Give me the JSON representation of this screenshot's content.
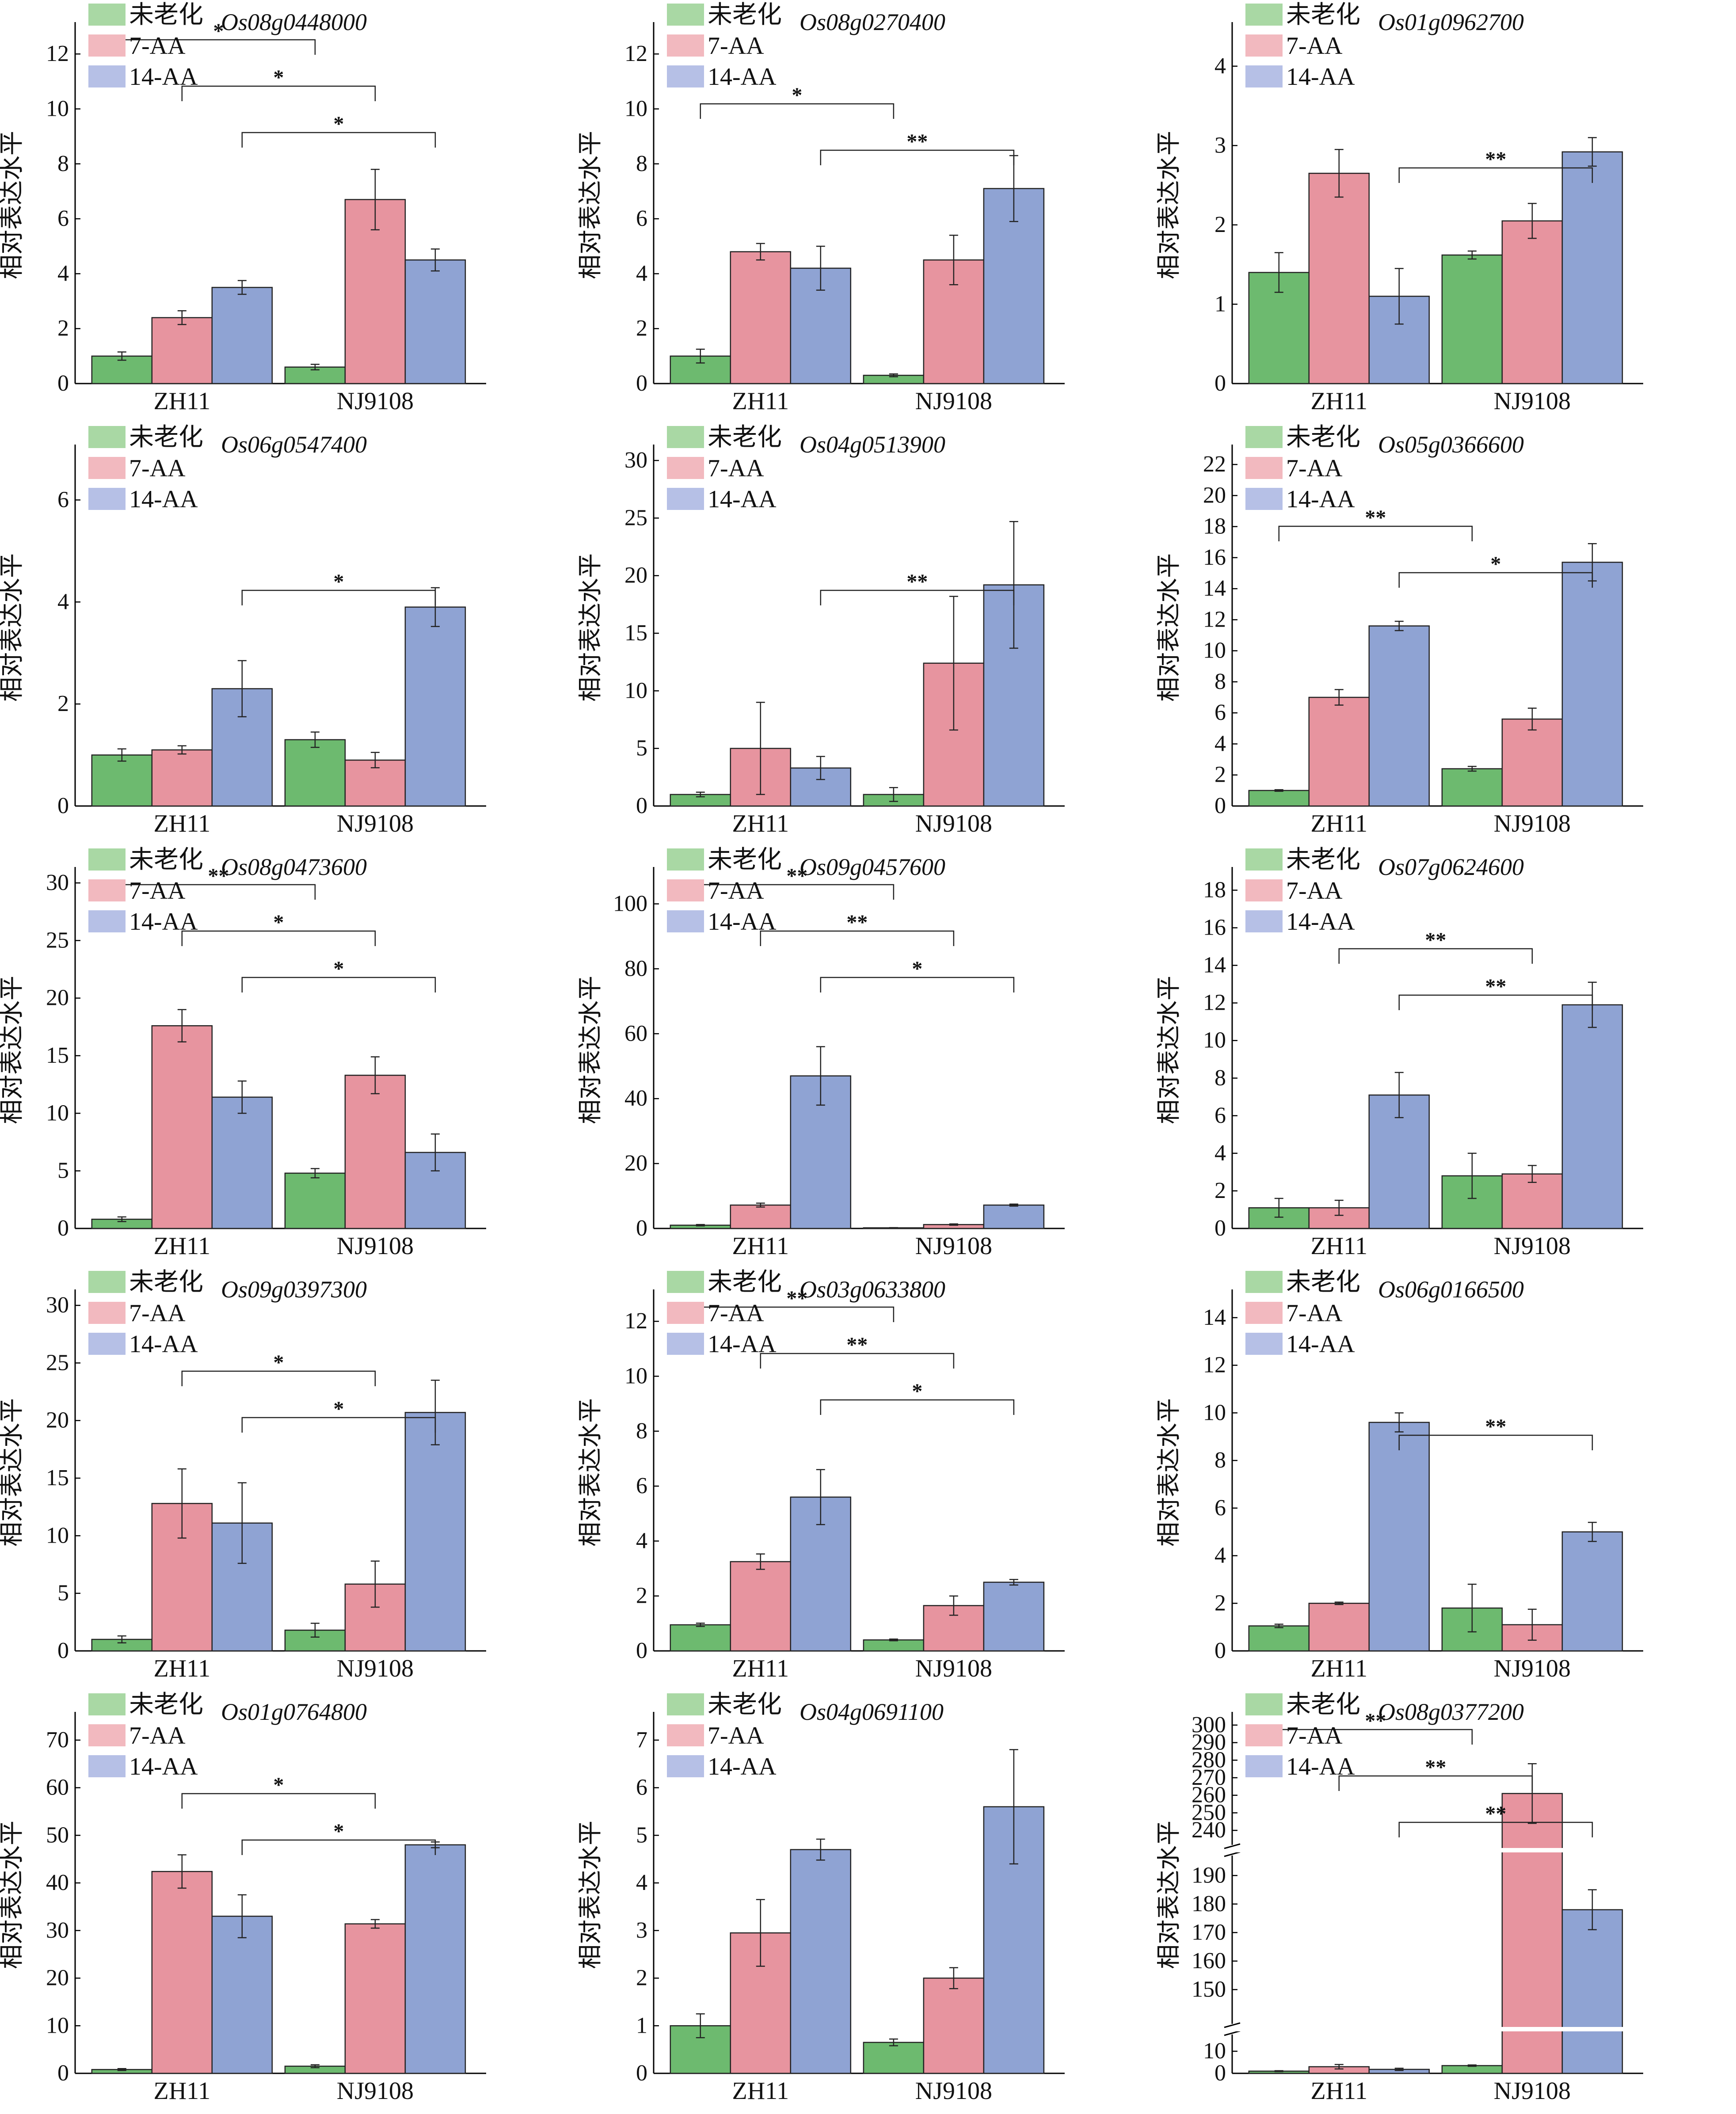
{
  "legend_labels": [
    "未老化",
    "7-AA",
    "14-AA"
  ],
  "colors": {
    "unaged": "#6dba6f",
    "aa7": "#e7949f",
    "aa14": "#8fa3d3",
    "legend_unaged": "#a9d8a4",
    "legend_aa7": "#f2b9bf",
    "legend_aa14": "#b6c0e6"
  },
  "chart_data": [
    {
      "type": "bar",
      "title": "Os08g0448000",
      "ylabel": "相对表达水平",
      "categories": [
        "ZH11",
        "NJ9108"
      ],
      "ylim": [
        0,
        13
      ],
      "yticks": [
        0,
        2,
        4,
        6,
        8,
        10,
        12
      ],
      "series": [
        {
          "name": "未老化",
          "values": [
            1.0,
            0.6
          ],
          "errors": [
            0.15,
            0.1
          ]
        },
        {
          "name": "7-AA",
          "values": [
            2.4,
            6.7
          ],
          "errors": [
            0.25,
            1.1
          ]
        },
        {
          "name": "14-AA",
          "values": [
            3.5,
            4.5
          ],
          "errors": [
            0.25,
            0.4
          ]
        }
      ],
      "significance": [
        {
          "series": 0,
          "label": "*"
        },
        {
          "series": 1,
          "label": "*"
        },
        {
          "series": 2,
          "label": "*"
        }
      ]
    },
    {
      "type": "bar",
      "title": "Os08g0270400",
      "ylabel": "相对表达水平",
      "categories": [
        "ZH11",
        "NJ9108"
      ],
      "ylim": [
        0,
        13
      ],
      "yticks": [
        0,
        2,
        4,
        6,
        8,
        10,
        12
      ],
      "series": [
        {
          "name": "未老化",
          "values": [
            1.0,
            0.3
          ],
          "errors": [
            0.25,
            0.05
          ]
        },
        {
          "name": "7-AA",
          "values": [
            4.8,
            4.5
          ],
          "errors": [
            0.3,
            0.9
          ]
        },
        {
          "name": "14-AA",
          "values": [
            4.2,
            7.1
          ],
          "errors": [
            0.8,
            1.2
          ]
        }
      ],
      "significance": [
        {
          "series": 0,
          "label": "*"
        },
        {
          "series": 2,
          "label": "**"
        }
      ]
    },
    {
      "type": "bar",
      "title": "Os01g0962700",
      "ylabel": "相对表达水平",
      "categories": [
        "ZH11",
        "NJ9108"
      ],
      "ylim": [
        0,
        4.5
      ],
      "yticks": [
        0,
        1,
        2,
        3,
        4
      ],
      "series": [
        {
          "name": "未老化",
          "values": [
            1.4,
            1.62
          ],
          "errors": [
            0.25,
            0.05
          ]
        },
        {
          "name": "7-AA",
          "values": [
            2.65,
            2.05
          ],
          "errors": [
            0.3,
            0.22
          ]
        },
        {
          "name": "14-AA",
          "values": [
            1.1,
            2.92
          ],
          "errors": [
            0.35,
            0.18
          ]
        }
      ],
      "significance": [
        {
          "series": 2,
          "label": "**"
        }
      ]
    },
    {
      "type": "bar",
      "title": "Os06g0547400",
      "ylabel": "相对表达水平",
      "categories": [
        "ZH11",
        "NJ9108"
      ],
      "ylim": [
        0,
        7
      ],
      "yticks": [
        0,
        2,
        4,
        6
      ],
      "series": [
        {
          "name": "未老化",
          "values": [
            1.0,
            1.3
          ],
          "errors": [
            0.12,
            0.15
          ]
        },
        {
          "name": "7-AA",
          "values": [
            1.1,
            0.9
          ],
          "errors": [
            0.08,
            0.15
          ]
        },
        {
          "name": "14-AA",
          "values": [
            2.3,
            3.9
          ],
          "errors": [
            0.55,
            0.38
          ]
        }
      ],
      "significance": [
        {
          "series": 2,
          "label": "*"
        }
      ]
    },
    {
      "type": "bar",
      "title": "Os04g0513900",
      "ylabel": "相对表达水平",
      "categories": [
        "ZH11",
        "NJ9108"
      ],
      "ylim": [
        0,
        31
      ],
      "yticks": [
        0,
        5,
        10,
        15,
        20,
        25,
        30
      ],
      "series": [
        {
          "name": "未老化",
          "values": [
            1.0,
            1.0
          ],
          "errors": [
            0.2,
            0.6
          ]
        },
        {
          "name": "7-AA",
          "values": [
            5.0,
            12.4
          ],
          "errors": [
            4.0,
            5.8
          ]
        },
        {
          "name": "14-AA",
          "values": [
            3.3,
            19.2
          ],
          "errors": [
            1.0,
            5.5
          ]
        }
      ],
      "significance": [
        {
          "series": 2,
          "label": "**"
        }
      ]
    },
    {
      "type": "bar",
      "title": "Os05g0366600",
      "ylabel": "相对表达水平",
      "categories": [
        "ZH11",
        "NJ9108"
      ],
      "ylim": [
        0,
        23
      ],
      "yticks": [
        0,
        2,
        4,
        6,
        8,
        10,
        12,
        14,
        16,
        18,
        20,
        22
      ],
      "series": [
        {
          "name": "未老化",
          "values": [
            1.0,
            2.4
          ],
          "errors": [
            0.05,
            0.15
          ]
        },
        {
          "name": "7-AA",
          "values": [
            7.0,
            5.6
          ],
          "errors": [
            0.5,
            0.7
          ]
        },
        {
          "name": "14-AA",
          "values": [
            11.6,
            15.7
          ],
          "errors": [
            0.3,
            1.2
          ]
        }
      ],
      "significance": [
        {
          "series": 0,
          "label": "**"
        },
        {
          "series": 2,
          "label": "*"
        }
      ]
    },
    {
      "type": "bar",
      "title": "Os08g0473600",
      "ylabel": "相对表达水平",
      "categories": [
        "ZH11",
        "NJ9108"
      ],
      "ylim": [
        0,
        31
      ],
      "yticks": [
        0,
        5,
        10,
        15,
        20,
        25,
        30
      ],
      "series": [
        {
          "name": "未老化",
          "values": [
            0.8,
            4.8
          ],
          "errors": [
            0.2,
            0.4
          ]
        },
        {
          "name": "7-AA",
          "values": [
            17.6,
            13.3
          ],
          "errors": [
            1.4,
            1.6
          ]
        },
        {
          "name": "14-AA",
          "values": [
            11.4,
            6.6
          ],
          "errors": [
            1.4,
            1.6
          ]
        }
      ],
      "significance": [
        {
          "series": 0,
          "label": "**"
        },
        {
          "series": 1,
          "label": "*"
        },
        {
          "series": 2,
          "label": "*"
        }
      ]
    },
    {
      "type": "bar",
      "title": "Os09g0457600",
      "ylabel": "相对表达水平",
      "categories": [
        "ZH11",
        "NJ9108"
      ],
      "ylim": [
        0,
        110
      ],
      "yticks": [
        0,
        20,
        40,
        60,
        80,
        100
      ],
      "series": [
        {
          "name": "未老化",
          "values": [
            1.0,
            0.2
          ],
          "errors": [
            0.2,
            0.05
          ]
        },
        {
          "name": "7-AA",
          "values": [
            7.2,
            1.2
          ],
          "errors": [
            0.6,
            0.2
          ]
        },
        {
          "name": "14-AA",
          "values": [
            47.0,
            7.2
          ],
          "errors": [
            9.0,
            0.3
          ]
        }
      ],
      "significance": [
        {
          "series": 0,
          "label": "**"
        },
        {
          "series": 1,
          "label": "**"
        },
        {
          "series": 2,
          "label": "*"
        }
      ]
    },
    {
      "type": "bar",
      "title": "Os07g0624600",
      "ylabel": "相对表达水平",
      "categories": [
        "ZH11",
        "NJ9108"
      ],
      "ylim": [
        0,
        19
      ],
      "yticks": [
        0,
        2,
        4,
        6,
        8,
        10,
        12,
        14,
        16,
        18
      ],
      "series": [
        {
          "name": "未老化",
          "values": [
            1.1,
            2.8
          ],
          "errors": [
            0.5,
            1.2
          ]
        },
        {
          "name": "7-AA",
          "values": [
            1.1,
            2.9
          ],
          "errors": [
            0.4,
            0.45
          ]
        },
        {
          "name": "14-AA",
          "values": [
            7.1,
            11.9
          ],
          "errors": [
            1.2,
            1.2
          ]
        }
      ],
      "significance": [
        {
          "series": 1,
          "label": "**"
        },
        {
          "series": 2,
          "label": "**"
        }
      ]
    },
    {
      "type": "bar",
      "title": "Os09g0397300",
      "ylabel": "相对表达水平",
      "categories": [
        "ZH11",
        "NJ9108"
      ],
      "ylim": [
        0,
        31
      ],
      "yticks": [
        0,
        5,
        10,
        15,
        20,
        25,
        30
      ],
      "series": [
        {
          "name": "未老化",
          "values": [
            1.0,
            1.8
          ],
          "errors": [
            0.3,
            0.6
          ]
        },
        {
          "name": "7-AA",
          "values": [
            12.8,
            5.8
          ],
          "errors": [
            3.0,
            2.0
          ]
        },
        {
          "name": "14-AA",
          "values": [
            11.1,
            20.7
          ],
          "errors": [
            3.5,
            2.8
          ]
        }
      ],
      "significance": [
        {
          "series": 1,
          "label": "*"
        },
        {
          "series": 2,
          "label": "*"
        }
      ]
    },
    {
      "type": "bar",
      "title": "Os03g0633800",
      "ylabel": "相对表达水平",
      "categories": [
        "ZH11",
        "NJ9108"
      ],
      "ylim": [
        0,
        13
      ],
      "yticks": [
        0,
        2,
        4,
        6,
        8,
        10,
        12
      ],
      "series": [
        {
          "name": "未老化",
          "values": [
            0.95,
            0.4
          ],
          "errors": [
            0.06,
            0.03
          ]
        },
        {
          "name": "7-AA",
          "values": [
            3.25,
            1.65
          ],
          "errors": [
            0.28,
            0.35
          ]
        },
        {
          "name": "14-AA",
          "values": [
            5.6,
            2.5
          ],
          "errors": [
            1.0,
            0.1
          ]
        }
      ],
      "significance": [
        {
          "series": 0,
          "label": "**"
        },
        {
          "series": 1,
          "label": "**"
        },
        {
          "series": 2,
          "label": "*"
        }
      ]
    },
    {
      "type": "bar",
      "title": "Os06g0166500",
      "ylabel": "相对表达水平",
      "categories": [
        "ZH11",
        "NJ9108"
      ],
      "ylim": [
        0,
        15
      ],
      "yticks": [
        0,
        2,
        4,
        6,
        8,
        10,
        12,
        14
      ],
      "series": [
        {
          "name": "未老化",
          "values": [
            1.05,
            1.8
          ],
          "errors": [
            0.07,
            1.0
          ]
        },
        {
          "name": "7-AA",
          "values": [
            2.0,
            1.1
          ],
          "errors": [
            0.05,
            0.65
          ]
        },
        {
          "name": "14-AA",
          "values": [
            9.6,
            5.0
          ],
          "errors": [
            0.4,
            0.4
          ]
        }
      ],
      "significance": [
        {
          "series": 2,
          "label": "**"
        }
      ]
    },
    {
      "type": "bar",
      "title": "Os01g0764800",
      "ylabel": "相对表达水平",
      "categories": [
        "ZH11",
        "NJ9108"
      ],
      "ylim": [
        0,
        75
      ],
      "yticks": [
        0,
        10,
        20,
        30,
        40,
        50,
        60,
        70
      ],
      "series": [
        {
          "name": "未老化",
          "values": [
            0.8,
            1.5
          ],
          "errors": [
            0.2,
            0.3
          ]
        },
        {
          "name": "7-AA",
          "values": [
            42.4,
            31.4
          ],
          "errors": [
            3.5,
            0.9
          ]
        },
        {
          "name": "14-AA",
          "values": [
            33.0,
            48.0
          ],
          "errors": [
            4.5,
            0.6
          ]
        }
      ],
      "significance": [
        {
          "series": 1,
          "label": "*"
        },
        {
          "series": 2,
          "label": "*"
        }
      ]
    },
    {
      "type": "bar",
      "title": "Os04g0691100",
      "ylabel": "相对表达水平",
      "categories": [
        "ZH11",
        "NJ9108"
      ],
      "ylim": [
        0,
        7.5
      ],
      "yticks": [
        0,
        1,
        2,
        3,
        4,
        5,
        6,
        7
      ],
      "series": [
        {
          "name": "未老化",
          "values": [
            1.0,
            0.65
          ],
          "errors": [
            0.25,
            0.07
          ]
        },
        {
          "name": "7-AA",
          "values": [
            2.95,
            2.0
          ],
          "errors": [
            0.7,
            0.22
          ]
        },
        {
          "name": "14-AA",
          "values": [
            4.7,
            5.6
          ],
          "errors": [
            0.22,
            1.2
          ]
        }
      ],
      "significance": []
    },
    {
      "type": "bar",
      "title": "Os08g0377200",
      "ylabel": "相对表达水平",
      "categories": [
        "ZH11",
        "NJ9108"
      ],
      "ylim": [
        0,
        305
      ],
      "axis_breaks": [
        [
          15,
          140
        ],
        [
          195,
          235
        ]
      ],
      "yticks": [
        0,
        10,
        150,
        160,
        170,
        180,
        190,
        240,
        250,
        260,
        270,
        280,
        290,
        300
      ],
      "series": [
        {
          "name": "未老化",
          "values": [
            1.0,
            3.5
          ],
          "errors": [
            0.2,
            0.3
          ]
        },
        {
          "name": "7-AA",
          "values": [
            3.0,
            261.0
          ],
          "errors": [
            1.0,
            17.0
          ]
        },
        {
          "name": "14-AA",
          "values": [
            1.8,
            178.0
          ],
          "errors": [
            0.5,
            7.0
          ]
        }
      ],
      "significance": [
        {
          "series": 0,
          "label": "**"
        },
        {
          "series": 1,
          "label": "**"
        },
        {
          "series": 2,
          "label": "**"
        }
      ]
    }
  ]
}
